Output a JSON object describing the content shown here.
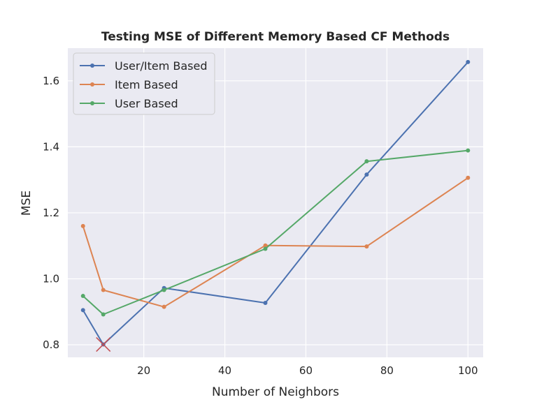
{
  "chart_data": {
    "type": "line",
    "title": "Testing MSE of Different Memory Based CF Methods",
    "xlabel": "Number of Neighbors",
    "ylabel": "MSE",
    "x": [
      5,
      10,
      25,
      50,
      75,
      100
    ],
    "xlim": [
      1.25,
      103.75
    ],
    "ylim": [
      0.762,
      1.699
    ],
    "xticks": [
      20,
      40,
      60,
      80,
      100
    ],
    "yticks": [
      0.8,
      1.0,
      1.2,
      1.4,
      1.6
    ],
    "ytick_labels": [
      "0.8",
      "1.0",
      "1.2",
      "1.4",
      "1.6"
    ],
    "grid": true,
    "legend": "top-left",
    "series": [
      {
        "name": "User/Item Based",
        "color": "#4c72b0",
        "values": [
          0.905,
          0.801,
          0.972,
          0.927,
          1.316,
          1.657
        ]
      },
      {
        "name": "Item Based",
        "color": "#dd8452",
        "values": [
          1.16,
          0.966,
          0.915,
          1.101,
          1.098,
          1.306
        ]
      },
      {
        "name": "User Based",
        "color": "#55a868",
        "values": [
          0.948,
          0.892,
          0.966,
          1.091,
          1.356,
          1.389
        ]
      }
    ],
    "annotations": [
      {
        "type": "marker",
        "shape": "x",
        "x": 10,
        "y": 0.801,
        "color": "#c44e52"
      }
    ]
  }
}
